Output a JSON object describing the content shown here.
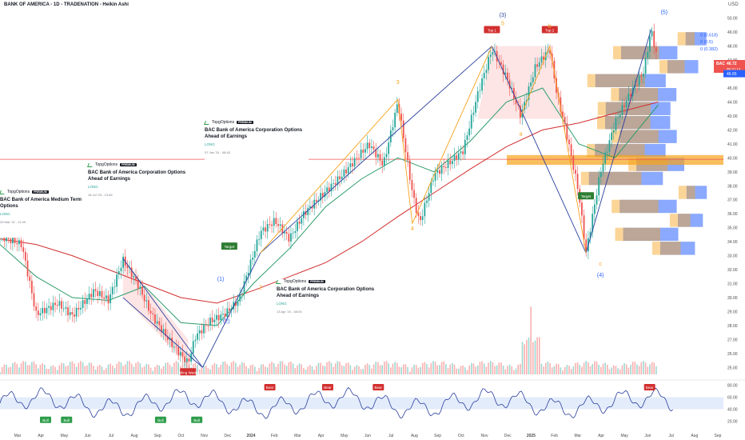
{
  "header": {
    "title": "BANK OF AMERICA - 1D - TRADENATION - Heikin Ashi",
    "currency": "USD"
  },
  "chart_data": {
    "type": "candlestick",
    "title": "BANK OF AMERICA - 1D - TRADENATION - Heikin Ashi",
    "symbol": "BAC",
    "price_axis": {
      "ticks": [
        25,
        26,
        27,
        28,
        29,
        30,
        31,
        32,
        33,
        34,
        35,
        36,
        37,
        38,
        39,
        40,
        41,
        42,
        43,
        44,
        45,
        46,
        47,
        48,
        49,
        50
      ],
      "range": [
        24.5,
        50.5
      ]
    },
    "time_axis": {
      "labels": [
        "Mar",
        "Apr",
        "May",
        "Jun",
        "Jul",
        "Aug",
        "Sep",
        "Oct",
        "Nov",
        "Dec",
        "2024",
        "Feb",
        "Mar",
        "Apr",
        "May",
        "Jun",
        "Jul",
        "Aug",
        "Sep",
        "Oct",
        "Nov",
        "Dec",
        "2025",
        "Feb",
        "Mar",
        "Apr",
        "May",
        "Jun",
        "Jul",
        "Aug",
        "Sep"
      ]
    },
    "price_path": [
      [
        0,
        34.4
      ],
      [
        0.03,
        33.8
      ],
      [
        0.05,
        28.8
      ],
      [
        0.08,
        29.6
      ],
      [
        0.1,
        28.7
      ],
      [
        0.13,
        30.5
      ],
      [
        0.15,
        29.8
      ],
      [
        0.17,
        32.7
      ],
      [
        0.19,
        31.0
      ],
      [
        0.21,
        28.7
      ],
      [
        0.24,
        26.5
      ],
      [
        0.26,
        25.3
      ],
      [
        0.27,
        27.2
      ],
      [
        0.29,
        28.3
      ],
      [
        0.31,
        28.8
      ],
      [
        0.33,
        29.8
      ],
      [
        0.36,
        34.7
      ],
      [
        0.38,
        35.5
      ],
      [
        0.4,
        34.2
      ],
      [
        0.42,
        36.0
      ],
      [
        0.45,
        37.6
      ],
      [
        0.47,
        38.6
      ],
      [
        0.49,
        39.8
      ],
      [
        0.51,
        41.0
      ],
      [
        0.53,
        39.5
      ],
      [
        0.55,
        44.0
      ],
      [
        0.57,
        37.5
      ],
      [
        0.58,
        35.3
      ],
      [
        0.6,
        38.8
      ],
      [
        0.62,
        39.6
      ],
      [
        0.64,
        40.5
      ],
      [
        0.66,
        44.5
      ],
      [
        0.68,
        47.8
      ],
      [
        0.7,
        45.8
      ],
      [
        0.72,
        43.0
      ],
      [
        0.74,
        46.5
      ],
      [
        0.76,
        47.8
      ],
      [
        0.77,
        44.5
      ],
      [
        0.78,
        42.5
      ],
      [
        0.8,
        37.5
      ],
      [
        0.81,
        33.2
      ],
      [
        0.83,
        39.0
      ],
      [
        0.85,
        42.5
      ],
      [
        0.87,
        44.5
      ],
      [
        0.89,
        46.2
      ],
      [
        0.9,
        49.2
      ],
      [
        0.91,
        46.7
      ]
    ],
    "moving_averages": [
      {
        "color": "#d32f2f",
        "path": [
          [
            0,
            34.2
          ],
          [
            0.05,
            33.8
          ],
          [
            0.1,
            33.0
          ],
          [
            0.15,
            32.0
          ],
          [
            0.2,
            31.0
          ],
          [
            0.25,
            30.0
          ],
          [
            0.3,
            29.6
          ],
          [
            0.35,
            30.5
          ],
          [
            0.4,
            31.5
          ],
          [
            0.45,
            32.5
          ],
          [
            0.5,
            34.0
          ],
          [
            0.55,
            35.8
          ],
          [
            0.6,
            37.5
          ],
          [
            0.65,
            39.2
          ],
          [
            0.7,
            40.8
          ],
          [
            0.75,
            42.0
          ],
          [
            0.8,
            42.5
          ],
          [
            0.85,
            43.2
          ],
          [
            0.91,
            44.0
          ]
        ]
      },
      {
        "color": "#2e9d6b",
        "path": [
          [
            0,
            33.8
          ],
          [
            0.05,
            31.5
          ],
          [
            0.1,
            30.0
          ],
          [
            0.15,
            29.8
          ],
          [
            0.2,
            30.8
          ],
          [
            0.25,
            28.2
          ],
          [
            0.3,
            28.0
          ],
          [
            0.35,
            31.0
          ],
          [
            0.4,
            33.5
          ],
          [
            0.45,
            36.5
          ],
          [
            0.5,
            38.5
          ],
          [
            0.55,
            40.0
          ],
          [
            0.6,
            39.0
          ],
          [
            0.65,
            41.2
          ],
          [
            0.7,
            44.0
          ],
          [
            0.75,
            45.0
          ],
          [
            0.8,
            41.0
          ],
          [
            0.85,
            40.0
          ],
          [
            0.91,
            43.8
          ]
        ]
      }
    ],
    "annotations": [
      "Top 1",
      "Top 2",
      "Falling Wedge",
      "Target",
      "Target",
      "(1)",
      "(2)",
      "(3)",
      "(4)",
      "(5)",
      "2",
      "3",
      "4",
      "5",
      "a",
      "b",
      "c",
      "0 (0.618)",
      "0 (0.5)",
      "0 (0.382)"
    ],
    "last_price": {
      "label": "BAC",
      "price": "46.72",
      "countdown": "05:21:12",
      "secondary": "46.65"
    },
    "oscillator": {
      "ticks": [
        20,
        40,
        60,
        80
      ],
      "range": [
        15,
        85
      ],
      "labels_bull": [
        "Bull",
        "Bull",
        "Bull",
        "Bull"
      ],
      "labels_bear": [
        "Bear",
        "Bear",
        "Bear",
        "Bear"
      ]
    }
  },
  "ideas": [
    {
      "author": "TopgOptions",
      "badge": "PREMIUM",
      "title": "BAC Bank of America Medium Term Options",
      "direction": "LONG",
      "time": "29 Mar '22 - 11:09"
    },
    {
      "author": "TopgOptions",
      "badge": "PREMIUM",
      "title": "BAC Bank of America Corporation Options Ahead of Earnings",
      "direction": "LONG",
      "time": "18 Jul '23 - 13:46"
    },
    {
      "author": "TopgOptions",
      "badge": "PREMIUM",
      "title": "BAC Bank of America Corporation Options Ahead of Earnings",
      "direction": "LONG",
      "time": "07 Jan '24 - 08:43"
    },
    {
      "author": "TopgOptions",
      "badge": "PREMIUM",
      "title": "BAC Bank of America Corporation Options Ahead of Earnings",
      "direction": "LONG",
      "time": "13 Apr '24 - 08:03"
    }
  ],
  "colors": {
    "up": "#26a69a",
    "down": "#ef5350",
    "fib": "#2962ff",
    "orange": "#f7a21b",
    "bg": "#ffffff"
  }
}
